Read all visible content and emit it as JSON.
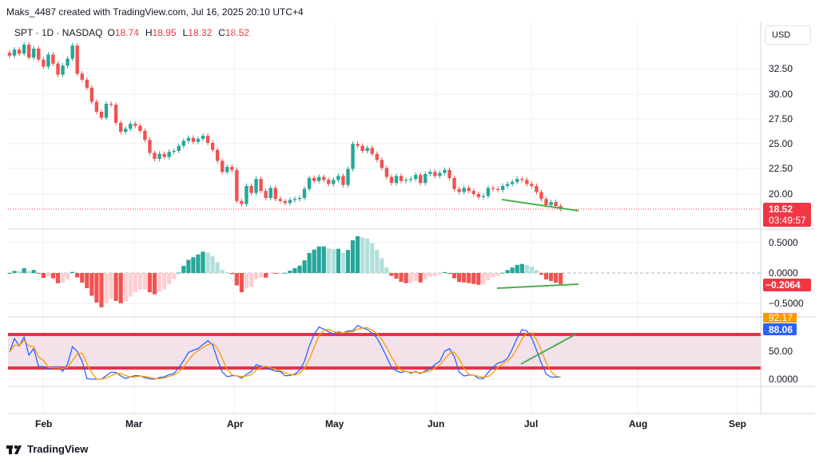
{
  "header": {
    "attribution": "Maks_4487 created with TradingView.com, Jul 16, 2025 20:10 UTC+4"
  },
  "legend": {
    "symbol": "SPT · 1D · NASDAQ",
    "open_label": "O",
    "open": "18.74",
    "high_label": "H",
    "high": "18.95",
    "low_label": "L",
    "low": "18.32",
    "close_label": "C",
    "close": "18.52"
  },
  "currency_button": "USD",
  "price_axis": {
    "ticks": [
      "32.50",
      "30.00",
      "27.50",
      "25.00",
      "22.50",
      "20.00"
    ]
  },
  "price_badge": {
    "price": "18.52",
    "countdown": "03:49:57"
  },
  "macd_axis": {
    "ticks": [
      "0.5000",
      "0.0000",
      "−0.5000"
    ],
    "last_value": "−0.2064"
  },
  "stoch_axis": {
    "ticks": [
      "50.00",
      "0.0000"
    ],
    "value_orange": "92.17",
    "value_blue": "88.06"
  },
  "time_axis": {
    "labels": [
      "Feb",
      "Mar",
      "Apr",
      "May",
      "Jun",
      "Jul",
      "Aug",
      "Sep"
    ]
  },
  "footer": {
    "brand": "TradingView"
  },
  "colors": {
    "up": "#26a69a",
    "down": "#ef5350",
    "accent": "#2962ff",
    "divergence": "#4caf50"
  },
  "chart_data": [
    {
      "type": "candlestick",
      "title": "SPT · 1D · NASDAQ",
      "ylim": [
        17.8,
        35.2
      ],
      "last_close": 18.52,
      "closes": [
        33.8,
        34.4,
        34.0,
        34.9,
        33.6,
        34.5,
        33.4,
        32.7,
        33.9,
        33.0,
        31.9,
        32.8,
        33.5,
        34.8,
        32.0,
        31.4,
        30.6,
        29.2,
        28.2,
        27.6,
        29.0,
        28.9,
        27.1,
        26.2,
        26.5,
        27.0,
        26.8,
        26.3,
        25.4,
        24.1,
        23.5,
        24.0,
        23.7,
        24.2,
        24.3,
        24.8,
        25.3,
        25.6,
        25.2,
        25.5,
        25.8,
        25.1,
        24.4,
        23.3,
        22.2,
        22.7,
        22.4,
        19.3,
        19.0,
        20.8,
        20.1,
        21.5,
        20.3,
        19.6,
        20.6,
        19.5,
        19.3,
        19.1,
        19.4,
        19.5,
        19.6,
        20.5,
        21.6,
        21.3,
        21.7,
        21.4,
        21.0,
        21.4,
        21.8,
        20.9,
        22.5,
        25.0,
        24.8,
        24.3,
        24.6,
        24.0,
        23.4,
        22.6,
        21.7,
        21.1,
        21.8,
        21.3,
        21.4,
        21.5,
        21.9,
        21.1,
        22.0,
        22.2,
        21.8,
        22.1,
        22.4,
        21.6,
        20.5,
        20.2,
        20.6,
        20.3,
        20.0,
        19.7,
        19.8,
        20.6,
        20.5,
        20.4,
        20.8,
        21.0,
        21.2,
        21.5,
        21.4,
        21.0,
        20.8,
        20.2,
        19.5,
        18.9,
        19.2,
        18.8,
        18.52
      ],
      "rsi_lines": [
        80,
        20
      ],
      "stoch_blue_last": 88.06,
      "stoch_orange_last": 92.17,
      "macd_last": -0.2064
    }
  ]
}
